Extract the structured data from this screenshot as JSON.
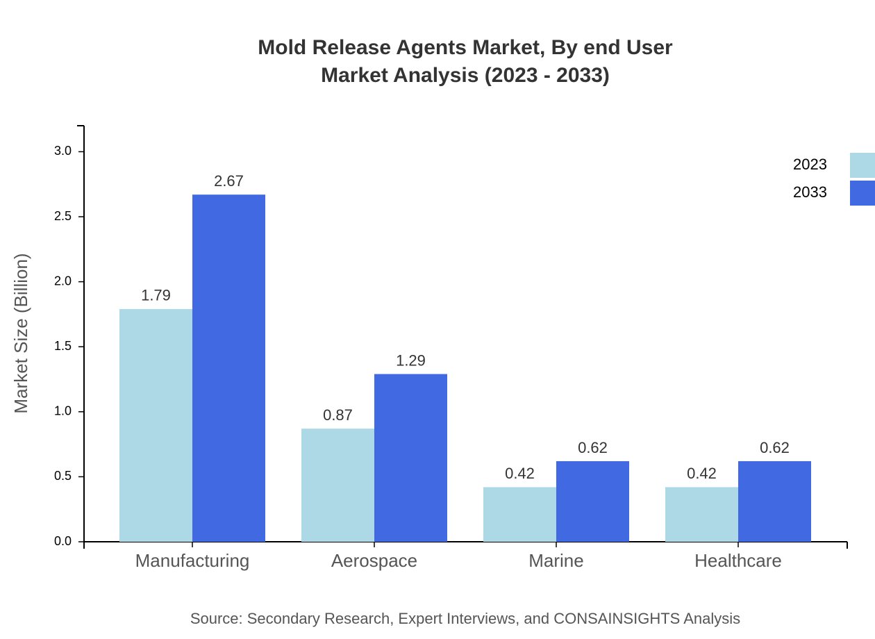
{
  "chart_data": {
    "type": "bar",
    "title": "Mold Release Agents Market, By end User",
    "subtitle": "Market Analysis (2023 - 2033)",
    "y_label": "Market Size (Billion)",
    "source": "Source: Secondary Research, Expert Interviews, and CONSAINSIGHTS Analysis",
    "categories": [
      "Manufacturing",
      "Aerospace",
      "Marine",
      "Healthcare"
    ],
    "series": [
      {
        "name": "2023",
        "color": "#add8e6",
        "values": [
          1.79,
          0.87,
          0.42,
          0.42
        ]
      },
      {
        "name": "2033",
        "color": "#4169e1",
        "values": [
          2.67,
          1.29,
          0.62,
          0.62
        ]
      }
    ],
    "ylim": [
      0,
      3.2
    ],
    "yticks": [
      {
        "value": 0,
        "label": "0.0"
      },
      0.5,
      {
        "value": 1,
        "label": "1.0"
      },
      1.5,
      {
        "value": 2,
        "label": "2.0"
      },
      2.5,
      {
        "value": 3,
        "label": "3.0"
      }
    ],
    "legend": "top-right"
  }
}
